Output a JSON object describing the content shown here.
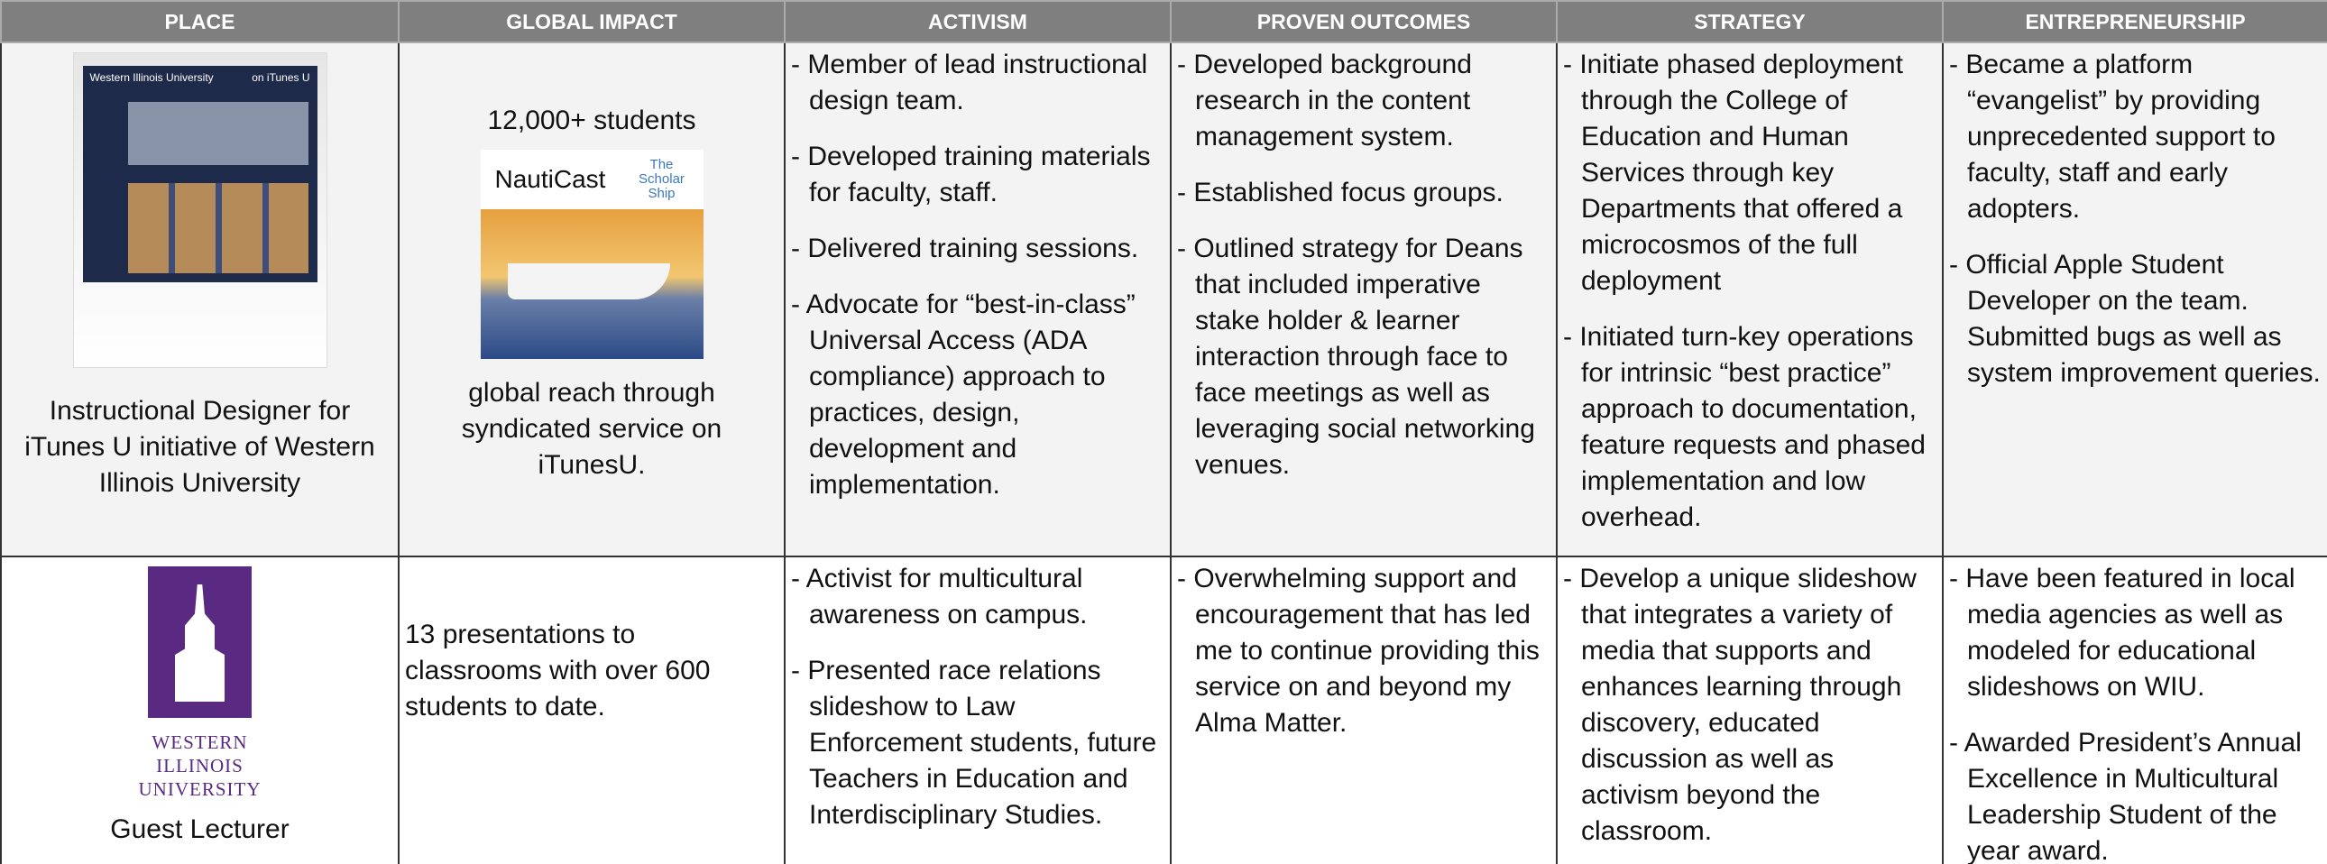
{
  "table": {
    "headers": [
      "PLACE",
      "GLOBAL IMPACT",
      "ACTIVISM",
      "PROVEN OUTCOMES",
      "STRATEGY",
      "ENTREPRENEURSHIP"
    ],
    "rows": [
      {
        "place": {
          "image_texts": [
            "Western Illinois University",
            "on iTunes U"
          ],
          "caption": "Instructional Designer for iTunes U initiative of Western Illinois University"
        },
        "global_impact": {
          "headline": "12,000+ students",
          "image_texts": [
            "NautiCast",
            "The Scholar Ship"
          ],
          "text": "global reach through syndicated service on iTunesU."
        },
        "activism": [
          "- Member of lead instructional design team.",
          "- Developed training materials for faculty, staff.",
          "- Delivered training sessions.",
          "- Advocate for “best-in-class” Universal Access (ADA compliance) approach to practices, design, development and implementation."
        ],
        "proven_outcomes": [
          "- Developed background research in the content management system.",
          "- Established focus groups.",
          "- Outlined strategy for Deans that included imperative stake holder & learner interaction through face to face meetings as well as leveraging social networking venues."
        ],
        "strategy": [
          "- Initiate phased deployment through the College of Education and Human Services through key Departments that offered a microcosmos of the full deployment",
          "- Initiated turn-key operations for intrinsic “best practice” approach to documentation, feature requests and phased implementation and low overhead."
        ],
        "entrepreneurship": [
          "- Became a platform “evangelist” by providing unprecedented support to faculty, staff and early adopters.",
          "- Official Apple Student Developer on the team. Submitted bugs as well as system improvement queries."
        ]
      },
      {
        "place": {
          "logo_lines": [
            "WESTERN",
            "ILLINOIS",
            "UNIVERSITY"
          ],
          "caption": "Guest Lecturer"
        },
        "global_impact": {
          "text": "13 presentations to classrooms  with over 600 students to date."
        },
        "activism": [
          "- Activist for multicultural awareness on campus.",
          "- Presented race relations slideshow to Law Enforcement students, future Teachers in Education and Interdisciplinary Studies."
        ],
        "proven_outcomes": [
          "- Overwhelming support and encouragement that has led me to continue providing this service on and beyond my Alma Matter."
        ],
        "strategy": [
          "- Develop a unique slideshow that integrates a variety of media that supports and enhances learning through discovery, educated discussion as well as activism beyond the classroom."
        ],
        "entrepreneurship": [
          "- Have been featured in local media agencies as well as modeled for educational slideshows on WIU.",
          "- Awarded President’s Annual Excellence in Multicultural Leadership Student of the year award."
        ]
      }
    ]
  }
}
